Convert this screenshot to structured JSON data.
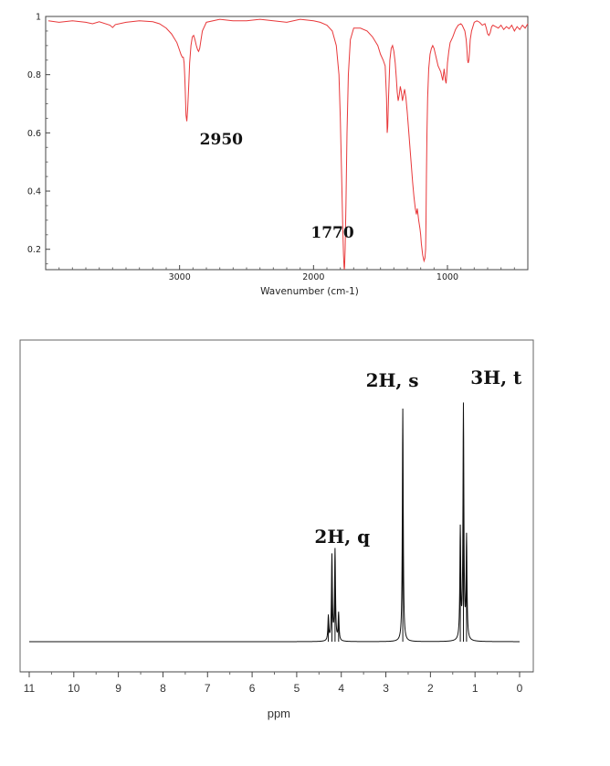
{
  "chart_data": [
    {
      "type": "line",
      "xlabel": "Wavenumber (cm-1)",
      "ylabel": "",
      "xlim": [
        4000,
        400
      ],
      "ylim": [
        0.13,
        1.0
      ],
      "x_reversed": true,
      "grid": false,
      "x_ticks": [
        3000,
        2000,
        1000
      ],
      "x_tick_labels": [
        "3000",
        "2000",
        "1000"
      ],
      "y_ticks": [
        1,
        0.8,
        0.6,
        0.4,
        0.2
      ],
      "y_tick_labels": [
        "1",
        "0.8",
        "0.6",
        "0.4",
        "0.2"
      ],
      "line_color": "#e8383a",
      "series": [
        {
          "x": [
            3980,
            3900,
            3800,
            3700,
            3650,
            3600,
            3520,
            3500,
            3480,
            3400,
            3300,
            3200,
            3150,
            3100,
            3060,
            3040,
            3020,
            3005,
            2990,
            2980,
            2972,
            2966,
            2962,
            2958,
            2952,
            2946,
            2940,
            2932,
            2925,
            2915,
            2905,
            2895,
            2885,
            2875,
            2865,
            2858,
            2850,
            2840,
            2830,
            2800,
            2700,
            2600,
            2500,
            2400,
            2300,
            2200,
            2100,
            2000,
            1950,
            1900,
            1860,
            1830,
            1810,
            1800,
            1790,
            1782,
            1776,
            1772,
            1770,
            1768,
            1764,
            1758,
            1750,
            1740,
            1725,
            1700,
            1650,
            1600,
            1560,
            1520,
            1500,
            1480,
            1465,
            1455,
            1450,
            1446,
            1440,
            1430,
            1420,
            1410,
            1400,
            1390,
            1382,
            1375,
            1368,
            1360,
            1352,
            1344,
            1336,
            1328,
            1320,
            1310,
            1300,
            1290,
            1280,
            1270,
            1260,
            1250,
            1240,
            1232,
            1225,
            1215,
            1205,
            1200,
            1195,
            1185,
            1175,
            1168,
            1163,
            1160,
            1157,
            1153,
            1148,
            1140,
            1130,
            1120,
            1110,
            1100,
            1090,
            1080,
            1070,
            1060,
            1050,
            1045,
            1040,
            1035,
            1030,
            1025,
            1020,
            1015,
            1010,
            1005,
            1000,
            990,
            980,
            960,
            940,
            920,
            900,
            890,
            880,
            870,
            860,
            855,
            850,
            845,
            840,
            835,
            830,
            820,
            800,
            780,
            760,
            740,
            720,
            710,
            700,
            690,
            680,
            670,
            660,
            640,
            620,
            600,
            580,
            560,
            540,
            520,
            500,
            480,
            460,
            440,
            420,
            400
          ],
          "y": [
            0.985,
            0.98,
            0.985,
            0.98,
            0.975,
            0.982,
            0.97,
            0.962,
            0.972,
            0.98,
            0.985,
            0.982,
            0.975,
            0.96,
            0.94,
            0.925,
            0.91,
            0.89,
            0.87,
            0.86,
            0.86,
            0.84,
            0.8,
            0.75,
            0.66,
            0.64,
            0.68,
            0.76,
            0.84,
            0.9,
            0.93,
            0.935,
            0.92,
            0.9,
            0.885,
            0.88,
            0.89,
            0.92,
            0.95,
            0.98,
            0.99,
            0.985,
            0.985,
            0.99,
            0.985,
            0.98,
            0.99,
            0.985,
            0.98,
            0.97,
            0.95,
            0.9,
            0.8,
            0.65,
            0.45,
            0.28,
            0.18,
            0.14,
            0.13,
            0.14,
            0.2,
            0.35,
            0.6,
            0.8,
            0.92,
            0.96,
            0.96,
            0.95,
            0.93,
            0.9,
            0.87,
            0.85,
            0.83,
            0.72,
            0.6,
            0.62,
            0.72,
            0.85,
            0.89,
            0.9,
            0.88,
            0.84,
            0.79,
            0.74,
            0.71,
            0.73,
            0.76,
            0.74,
            0.71,
            0.73,
            0.75,
            0.72,
            0.67,
            0.61,
            0.55,
            0.49,
            0.43,
            0.38,
            0.34,
            0.32,
            0.34,
            0.3,
            0.27,
            0.25,
            0.22,
            0.18,
            0.16,
            0.17,
            0.2,
            0.3,
            0.45,
            0.6,
            0.72,
            0.82,
            0.87,
            0.89,
            0.9,
            0.89,
            0.87,
            0.85,
            0.83,
            0.82,
            0.81,
            0.8,
            0.79,
            0.78,
            0.8,
            0.82,
            0.8,
            0.78,
            0.77,
            0.8,
            0.84,
            0.88,
            0.91,
            0.93,
            0.955,
            0.97,
            0.975,
            0.97,
            0.96,
            0.95,
            0.92,
            0.89,
            0.85,
            0.84,
            0.85,
            0.88,
            0.92,
            0.95,
            0.98,
            0.985,
            0.98,
            0.97,
            0.975,
            0.96,
            0.94,
            0.935,
            0.945,
            0.965,
            0.97,
            0.965,
            0.96,
            0.97,
            0.955,
            0.965,
            0.958,
            0.97,
            0.95,
            0.965,
            0.955,
            0.97,
            0.96,
            0.975
          ]
        }
      ],
      "annotations": [
        {
          "text": "2950",
          "x": 2850,
          "y": 0.56
        },
        {
          "text": "1770",
          "x": 2020,
          "y": 0.24
        }
      ]
    },
    {
      "type": "line",
      "xlabel": "ppm",
      "ylabel": "",
      "xlim": [
        11,
        0
      ],
      "x_reversed": true,
      "grid": false,
      "x_ticks": [
        11,
        10,
        9,
        8,
        7,
        6,
        5,
        4,
        3,
        2,
        1,
        0
      ],
      "x_tick_labels": [
        "11",
        "10",
        "9",
        "8",
        "7",
        "6",
        "5",
        "4",
        "3",
        "2",
        "1",
        "0"
      ],
      "line_color": "#111111",
      "peaks": [
        {
          "ppm": 4.29,
          "height": 0.09
        },
        {
          "ppm": 4.21,
          "height": 0.31
        },
        {
          "ppm": 4.14,
          "height": 0.33
        },
        {
          "ppm": 4.06,
          "height": 0.1
        },
        {
          "ppm": 2.62,
          "height": 0.85
        },
        {
          "ppm": 1.33,
          "height": 0.4
        },
        {
          "ppm": 1.26,
          "height": 0.85
        },
        {
          "ppm": 1.19,
          "height": 0.37
        }
      ],
      "annotations": [
        {
          "text": "2H, q",
          "x": 4.6,
          "y": 0.36
        },
        {
          "text": "2H, s",
          "x": 3.45,
          "y": 0.93
        },
        {
          "text": "3H, t",
          "x": 1.1,
          "y": 0.94
        }
      ]
    }
  ]
}
